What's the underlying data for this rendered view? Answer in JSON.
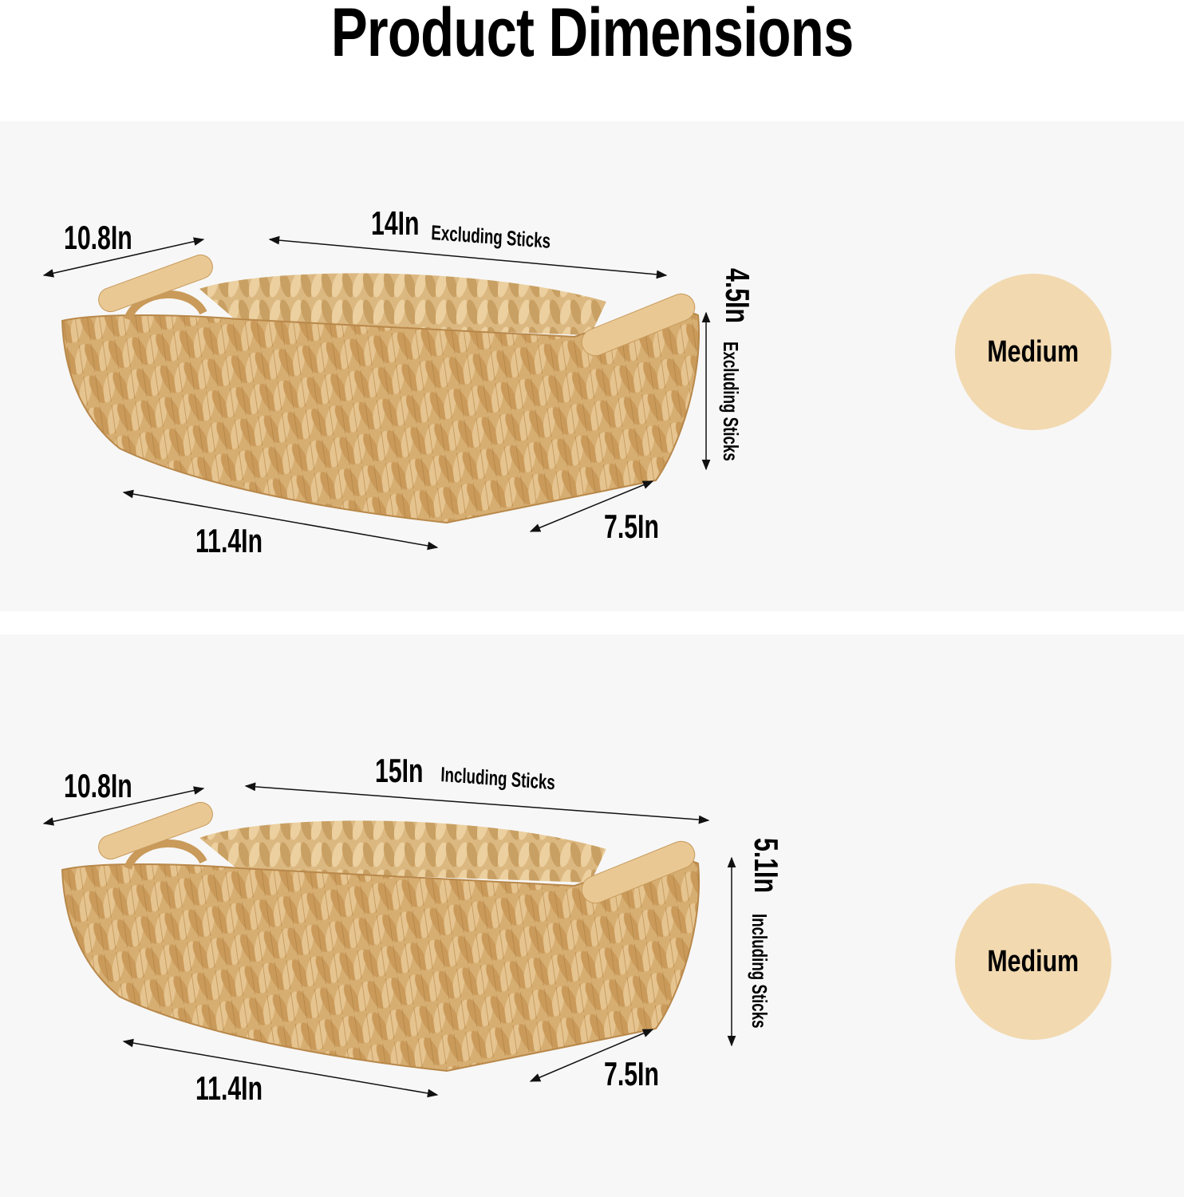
{
  "title": "Product Dimensions",
  "colors": {
    "background": "#ffffff",
    "panel": "#f7f7f7",
    "size_badge": "#f2d9b0",
    "basket": "#d9b27a",
    "handle": "#e9c893",
    "text": "#000000"
  },
  "panels": [
    {
      "width_label": "10.8In",
      "length_value": "14In",
      "length_note": "Excluding Sticks",
      "height_value": "4.5In",
      "height_note": "Excluding Sticks",
      "bottom_length": "11.4In",
      "bottom_width": "7.5In",
      "size": "Medium"
    },
    {
      "width_label": "10.8In",
      "length_value": "15In",
      "length_note": "Including Sticks",
      "height_value": "5.1In",
      "height_note": "Including Sticks",
      "bottom_length": "11.4In",
      "bottom_width": "7.5In",
      "size": "Medium"
    }
  ]
}
